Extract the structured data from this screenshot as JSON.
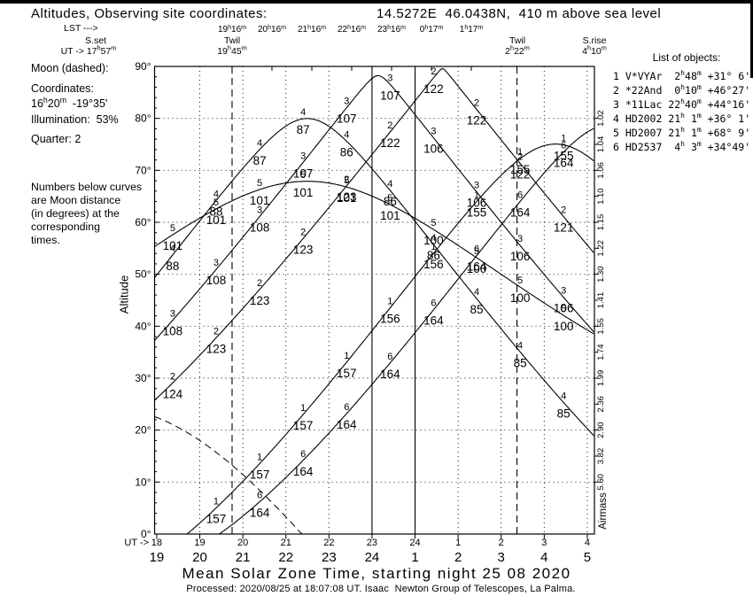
{
  "header": {
    "title_left": "Altitudes, Observing site coordinates:",
    "title_right": "14.5272E  46.0438N,  410 m above sea level",
    "lst_label": "LST --->",
    "lst_ticks": [
      "19h16m",
      "20h16m",
      "21h16m",
      "22h16m",
      "23h16m",
      "0h17m",
      "1h17m"
    ],
    "ut_prefix": "UT ->",
    "events": [
      {
        "name": "S.set",
        "time": "17h57m",
        "ut": 17.95,
        "line": "none"
      },
      {
        "name": "Twil",
        "time": "19h45m",
        "ut": 19.75,
        "line": "dashed"
      },
      {
        "name": "Twil",
        "time": "2h22m",
        "ut": 26.367,
        "line": "dashed"
      },
      {
        "name": "S.rise",
        "time": "4h10m",
        "ut": 28.167,
        "line": "none"
      }
    ]
  },
  "moon_panel": {
    "line1": "Moon (dashed):",
    "coords_label": "Coordinates:",
    "coords": "16h20m  -19°35'",
    "illumination": "Illumination:  53%",
    "quarter": "Quarter: 2",
    "note": "Numbers below curves\nare Moon distance\n(in degrees) at the\ncorresponding\ntimes."
  },
  "objects_panel": {
    "heading": "List of objects:"
  },
  "axes": {
    "y_label": "Altitude",
    "y2_label": "Airmass",
    "x_title": "Mean Solar Zone Time, starting night 25 08 2020",
    "ut_prefix": "UT ->",
    "y_ticks": [
      {
        "alt": 90,
        "label": "90°"
      },
      {
        "alt": 80,
        "label": "80°"
      },
      {
        "alt": 70,
        "label": "70°"
      },
      {
        "alt": 60,
        "label": "60°"
      },
      {
        "alt": 50,
        "label": "50°"
      },
      {
        "alt": 40,
        "label": "40°"
      },
      {
        "alt": 30,
        "label": "30°"
      },
      {
        "alt": 20,
        "label": "20°"
      },
      {
        "alt": 10,
        "label": "10°"
      },
      {
        "alt": 0,
        "label": "0°"
      }
    ],
    "airmass_ticks": [
      {
        "alt": 80,
        "v": "1.02"
      },
      {
        "alt": 75,
        "v": "1.04"
      },
      {
        "alt": 70,
        "v": "1.06"
      },
      {
        "alt": 65,
        "v": "1.10"
      },
      {
        "alt": 60,
        "v": "1.15"
      },
      {
        "alt": 55,
        "v": "1.22"
      },
      {
        "alt": 50,
        "v": "1.30"
      },
      {
        "alt": 45,
        "v": "1.41"
      },
      {
        "alt": 40,
        "v": "1.55"
      },
      {
        "alt": 35,
        "v": "1.74"
      },
      {
        "alt": 30,
        "v": "1.99"
      },
      {
        "alt": 25,
        "v": "2.36"
      },
      {
        "alt": 20,
        "v": "2.90"
      },
      {
        "alt": 15,
        "v": "3.82"
      },
      {
        "alt": 10,
        "v": "5.60"
      }
    ],
    "ut_hours": [
      {
        "ut": 18,
        "l": "18"
      },
      {
        "ut": 19,
        "l": "19"
      },
      {
        "ut": 20,
        "l": "20"
      },
      {
        "ut": 21,
        "l": "21"
      },
      {
        "ut": 22,
        "l": "22"
      },
      {
        "ut": 23,
        "l": "23"
      },
      {
        "ut": 24,
        "l": "24"
      },
      {
        "ut": 25,
        "l": "1"
      },
      {
        "ut": 26,
        "l": "2"
      },
      {
        "ut": 27,
        "l": "3"
      },
      {
        "ut": 28,
        "l": "4"
      }
    ],
    "mst_hours": [
      {
        "ut": 18,
        "l": "19"
      },
      {
        "ut": 19,
        "l": "20"
      },
      {
        "ut": 20,
        "l": "21"
      },
      {
        "ut": 21,
        "l": "22"
      },
      {
        "ut": 22,
        "l": "23"
      },
      {
        "ut": 23,
        "l": "24"
      },
      {
        "ut": 24,
        "l": "1"
      },
      {
        "ut": 25,
        "l": "2"
      },
      {
        "ut": 26,
        "l": "3"
      },
      {
        "ut": 27,
        "l": "4"
      },
      {
        "ut": 28,
        "l": "5"
      }
    ]
  },
  "footer": "Processed: 2020/08/25 at 18:07:08 UT. Isaac  Newton Group of Telescopes, La Palma.",
  "chart_data": {
    "type": "line",
    "title": "Altitudes, Observing site coordinates: 14.5272E 46.0438N, 410 m above sea level",
    "xlabel": "Mean Solar Zone Time, starting night 25 08 2020",
    "ylabel": "Altitude",
    "y2label": "Airmass",
    "ylim": [
      0,
      90
    ],
    "x_ut_range": [
      17.95,
      28.167
    ],
    "site": {
      "longitude": "14.5272E",
      "latitude_deg": 46.0438,
      "elevation": "410 m above sea level"
    },
    "lst_reference": {
      "ut": 19.75,
      "lst_h": 19.2667
    },
    "solid_vertical_lines_ut": [
      23,
      24
    ],
    "twilight_lines_ut": [
      19.75,
      26.367
    ],
    "sun_set_ut": "17h57m",
    "sun_rise_ut": "4h10m",
    "moon": {
      "ra_h": 16.3333,
      "dec_d": -19.5833,
      "coords": "16h20m -19°35'",
      "illumination": "53%",
      "quarter": 2,
      "style": "dashed"
    },
    "moon_distance_times_ut": [
      18.37,
      19.38,
      20.39,
      21.4,
      22.41,
      23.42,
      24.43,
      25.43,
      26.44,
      27.45
    ],
    "objects": [
      {
        "num": 1,
        "name": "V*VYAr",
        "ra": " 2h48m",
        "dec": "+31° 6'",
        "ra_h": 2.8,
        "dec_d": 31.1,
        "moon_dist": [
          null,
          157,
          157,
          157,
          157,
          156,
          156,
          155,
          155,
          155
        ]
      },
      {
        "num": 2,
        "name": "*22And",
        "ra": " 0h10m",
        "dec": "+46°27'",
        "ra_h": 0.1667,
        "dec_d": 46.45,
        "moon_dist": [
          124,
          123,
          123,
          123,
          123,
          122,
          122,
          122,
          122,
          121
        ]
      },
      {
        "num": 3,
        "name": "*11Lac",
        "ra": "22h40m",
        "dec": "+44°16'",
        "ra_h": 22.6667,
        "dec_d": 44.2667,
        "moon_dist": [
          108,
          108,
          108,
          107,
          107,
          107,
          106,
          106,
          106,
          106
        ]
      },
      {
        "num": 4,
        "name": "HD2002",
        "ra": "21h 1m",
        "dec": "+36° 1'",
        "ra_h": 21.0167,
        "dec_d": 36.0167,
        "moon_dist": [
          88,
          88,
          87,
          87,
          86,
          86,
          86,
          85,
          85,
          85
        ]
      },
      {
        "num": 5,
        "name": "HD2007",
        "ra": "21h 1m",
        "dec": "+68° 9'",
        "ra_h": 21.0167,
        "dec_d": 68.15,
        "moon_dist": [
          101,
          101,
          101,
          101,
          101,
          101,
          100,
          100,
          100,
          100
        ]
      },
      {
        "num": 6,
        "name": "HD2537",
        "ra": " 4h 3m",
        "dec": "+34°49'",
        "ra_h": 4.05,
        "dec_d": 34.8167,
        "moon_dist": [
          null,
          null,
          164,
          164,
          164,
          164,
          164,
          164,
          164,
          164
        ]
      }
    ],
    "colors": {
      "distance_numbers": "#2233cc",
      "object_markers": "#dd33dd",
      "curves": "#000000"
    }
  }
}
